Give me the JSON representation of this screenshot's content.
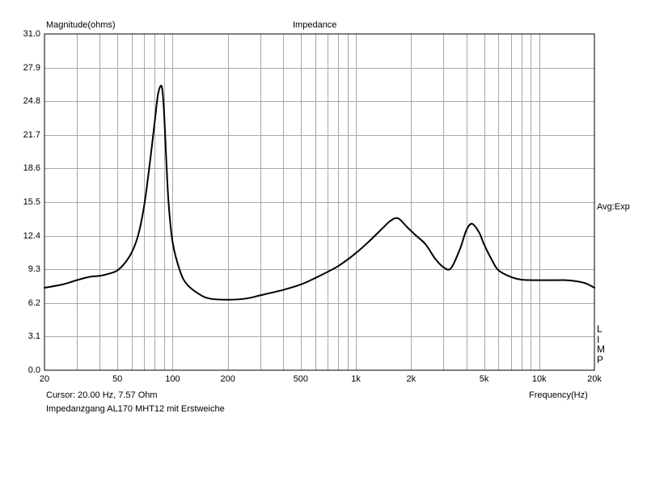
{
  "chart_data": {
    "type": "line",
    "title": "Impedance",
    "ylabel": "Magnitude(ohms)",
    "xlabel": "Frequency(Hz)",
    "xscale": "log",
    "xlim": [
      20,
      20000
    ],
    "ylim": [
      0,
      31
    ],
    "grid": true,
    "y_ticks": [
      "0.0",
      "3.1",
      "6.2",
      "9.3",
      "12.4",
      "15.5",
      "18.6",
      "21.7",
      "24.8",
      "27.9",
      "31.0"
    ],
    "x_ticks": [
      {
        "value": 20,
        "label": "20"
      },
      {
        "value": 50,
        "label": "50"
      },
      {
        "value": 100,
        "label": "100"
      },
      {
        "value": 200,
        "label": "200"
      },
      {
        "value": 500,
        "label": "500"
      },
      {
        "value": 1000,
        "label": "1k"
      },
      {
        "value": 2000,
        "label": "2k"
      },
      {
        "value": 5000,
        "label": "5k"
      },
      {
        "value": 10000,
        "label": "10k"
      },
      {
        "value": 20000,
        "label": "20k"
      }
    ],
    "right_label": "Avg:Exp",
    "right_letters": [
      "L",
      "I",
      "M",
      "P"
    ],
    "series": [
      {
        "name": "",
        "color": "#000000",
        "x": [
          20,
          25,
          30,
          35,
          40,
          45,
          50,
          55,
          60,
          65,
          70,
          75,
          80,
          83,
          86,
          88,
          90,
          92,
          95,
          100,
          110,
          120,
          140,
          160,
          200,
          250,
          300,
          400,
          500,
          600,
          800,
          1000,
          1200,
          1400,
          1550,
          1700,
          1900,
          2100,
          2400,
          2700,
          3000,
          3300,
          3700,
          4000,
          4300,
          4700,
          5000,
          5500,
          6000,
          7000,
          8000,
          10000,
          12000,
          14000,
          16000,
          18000,
          20000
        ],
        "y": [
          7.6,
          7.9,
          8.3,
          8.6,
          8.7,
          8.9,
          9.2,
          9.9,
          10.9,
          12.5,
          15.2,
          19.0,
          23.0,
          25.3,
          26.2,
          25.8,
          23.5,
          20.0,
          15.5,
          11.8,
          9.1,
          7.9,
          7.0,
          6.6,
          6.5,
          6.6,
          6.9,
          7.4,
          7.9,
          8.5,
          9.6,
          10.8,
          12.0,
          13.1,
          13.8,
          14.0,
          13.2,
          12.5,
          11.6,
          10.3,
          9.5,
          9.4,
          11.2,
          12.9,
          13.5,
          12.7,
          11.6,
          10.2,
          9.2,
          8.6,
          8.35,
          8.3,
          8.3,
          8.3,
          8.2,
          8.0,
          7.6
        ]
      }
    ]
  },
  "cursor_text": "Cursor: 20.00 Hz, 7.57 Ohm",
  "caption": "Impedanzgang AL170 MHT12 mit Erstweiche"
}
